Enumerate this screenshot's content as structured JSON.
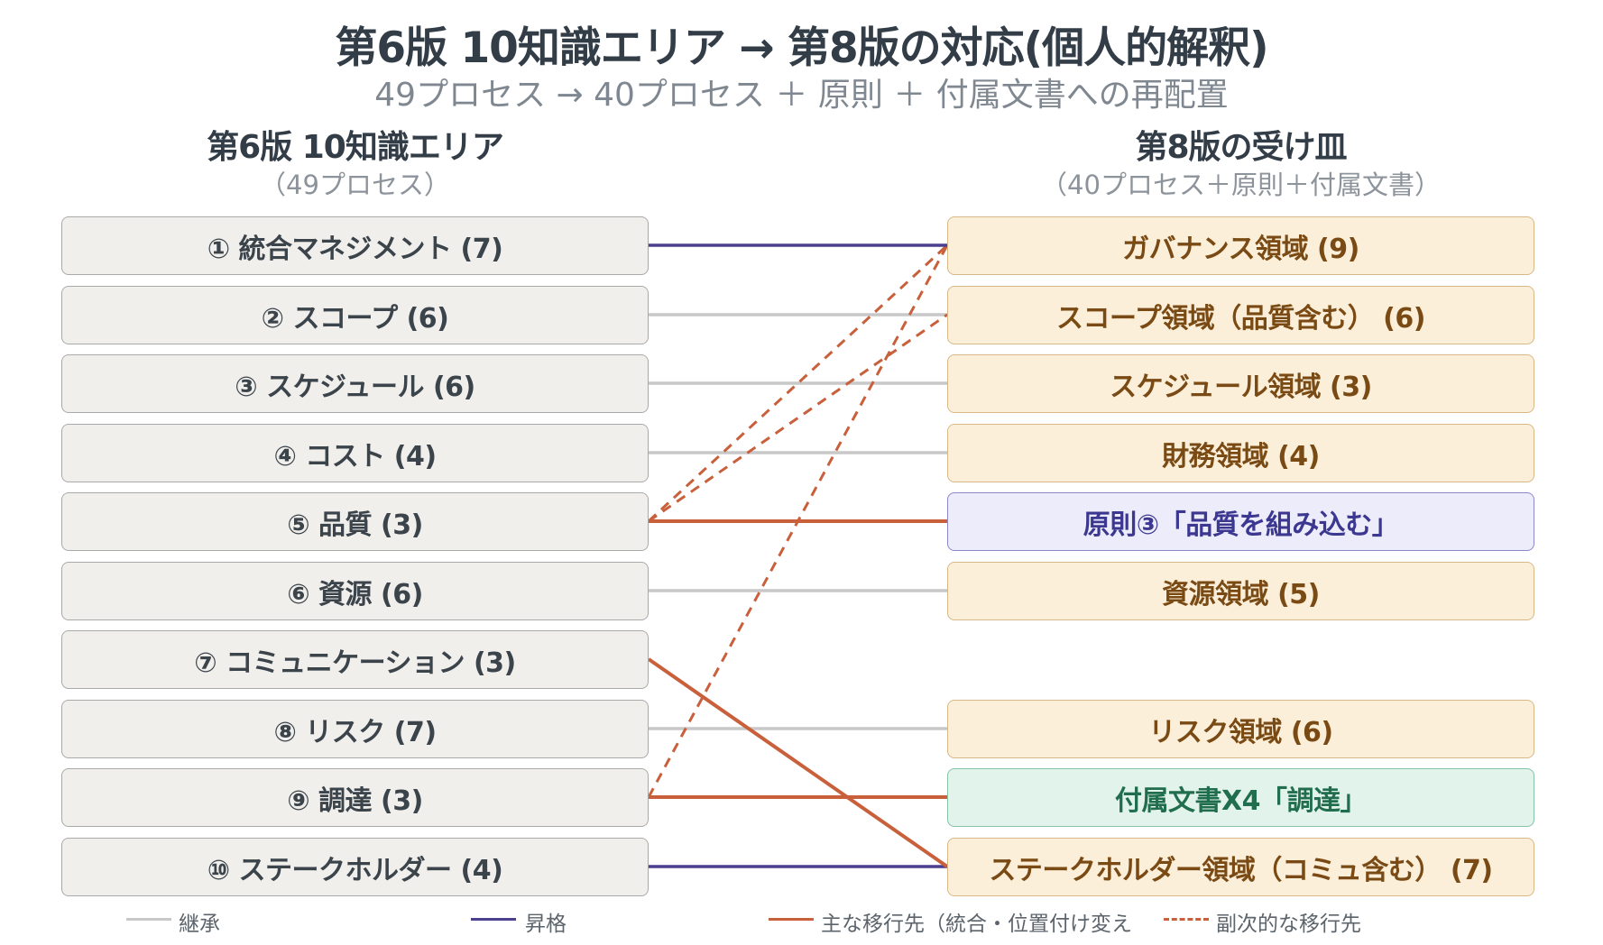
{
  "title": "第6版 10知識エリア → 第8版の対応(個人的解釈)",
  "subtitle": "49プロセス → 40プロセス ＋ 原則 ＋ 付属文書への再配置",
  "left_column": {
    "heading": "第6版 10知識エリア",
    "sub": "（49プロセス）",
    "items": [
      "① 統合マネジメント (7)",
      "② スコープ (6)",
      "③ スケジュール (6)",
      "④ コスト (4)",
      "⑤ 品質 (3)",
      "⑥ 資源 (6)",
      "⑦ コミュニケーション (3)",
      "⑧ リスク (7)",
      "⑨ 調達 (3)",
      "⑩ ステークホルダー (4)"
    ]
  },
  "right_column": {
    "heading": "第8版の受け皿",
    "sub": "（40プロセス＋原則＋付属文書）",
    "items": [
      {
        "label": "ガバナンス領域 (9)",
        "kind": "domain"
      },
      {
        "label": "スコープ領域（品質含む） (6)",
        "kind": "domain"
      },
      {
        "label": "スケジュール領域 (3)",
        "kind": "domain"
      },
      {
        "label": "財務領域 (4)",
        "kind": "domain"
      },
      {
        "label": "原則③「品質を組み込む」",
        "kind": "principle"
      },
      {
        "label": "資源領域 (5)",
        "kind": "domain"
      },
      {
        "label": "リスク領域 (6)",
        "kind": "domain"
      },
      {
        "label": "付属文書X4「調達」",
        "kind": "annex"
      },
      {
        "label": "ステークホルダー領域（コミュ含む） (7)",
        "kind": "domain"
      }
    ]
  },
  "connections": [
    {
      "from": 0,
      "to": 0,
      "type": "promotion"
    },
    {
      "from": 1,
      "to": 1,
      "type": "inherit"
    },
    {
      "from": 2,
      "to": 2,
      "type": "inherit"
    },
    {
      "from": 3,
      "to": 3,
      "type": "inherit"
    },
    {
      "from": 4,
      "to": 4,
      "type": "primary"
    },
    {
      "from": 4,
      "to": 0,
      "type": "secondary"
    },
    {
      "from": 4,
      "to": 1,
      "type": "secondary"
    },
    {
      "from": 5,
      "to": 5,
      "type": "inherit"
    },
    {
      "from": 6,
      "to": 8,
      "type": "primary"
    },
    {
      "from": 7,
      "to": 6,
      "type": "inherit"
    },
    {
      "from": 8,
      "to": 7,
      "type": "primary"
    },
    {
      "from": 8,
      "to": 0,
      "type": "secondary"
    },
    {
      "from": 9,
      "to": 8,
      "type": "promotion"
    }
  ],
  "legend": [
    {
      "label": "継承",
      "type": "inherit"
    },
    {
      "label": "昇格",
      "type": "promotion"
    },
    {
      "label": "主な移行先（統合・位置付け変え",
      "type": "primary"
    },
    {
      "label": "副次的な移行先",
      "type": "secondary"
    }
  ],
  "colors": {
    "inherit": "#c8c8c8",
    "promotion": "#4b3f8f",
    "primary": "#c8603c",
    "secondary": "#c8603c",
    "domain_fill": "#fcefd9",
    "principle_fill": "#ececfa",
    "annex_fill": "#e2f3ec",
    "left_fill": "#f1efeb"
  }
}
